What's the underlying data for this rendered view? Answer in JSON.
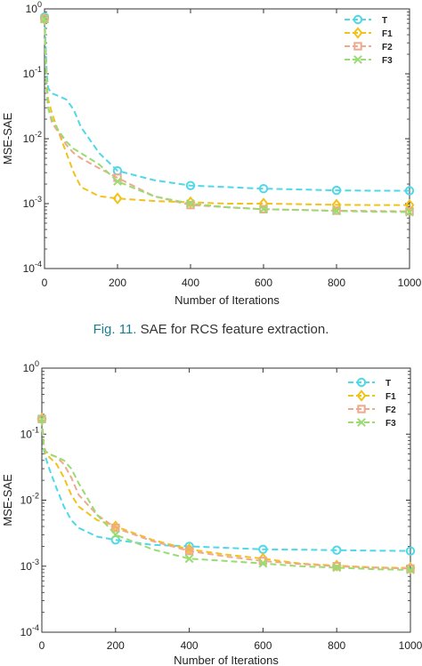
{
  "caption": {
    "figure_label": "Fig. 11.",
    "text": "SAE for RCS feature extraction."
  },
  "styles": {
    "T": {
      "color": "#4fd8e8",
      "marker": "circle"
    },
    "F1": {
      "color": "#f2c21c",
      "marker": "diamond"
    },
    "F2": {
      "color": "#f1a98e",
      "marker": "square"
    },
    "F3": {
      "color": "#98dc72",
      "marker": "cross"
    }
  },
  "chart_data": [
    {
      "type": "line",
      "title": "",
      "xlabel": "Number of Iterations",
      "ylabel": "MSE-SAE",
      "xlim": [
        0,
        1000
      ],
      "ylim": [
        0.0001,
        1
      ],
      "yscale": "log",
      "xticks": [
        "0",
        "200",
        "400",
        "600",
        "800",
        "1000"
      ],
      "yticks": [
        {
          "base": "10",
          "exp": "0"
        },
        {
          "base": "10",
          "exp": "-1"
        },
        {
          "base": "10",
          "exp": "-2"
        },
        {
          "base": "10",
          "exp": "-3"
        },
        {
          "base": "10",
          "exp": "-4"
        }
      ],
      "legend_position": "top-right",
      "grid": false,
      "series": [
        {
          "name": "T",
          "marker_x": [
            0,
            200,
            400,
            600,
            800,
            1000
          ],
          "x": [
            0,
            3,
            6,
            10,
            20,
            40,
            60,
            80,
            100,
            150,
            200,
            300,
            400,
            500,
            600,
            700,
            800,
            900,
            1000
          ],
          "y": [
            0.75,
            0.3,
            0.1,
            0.06,
            0.05,
            0.045,
            0.04,
            0.028,
            0.015,
            0.006,
            0.0032,
            0.0023,
            0.0019,
            0.0018,
            0.0017,
            0.00165,
            0.0016,
            0.00158,
            0.00158
          ]
        },
        {
          "name": "F1",
          "marker_x": [
            0,
            200,
            400,
            600,
            800,
            1000
          ],
          "x": [
            0,
            3,
            6,
            10,
            20,
            40,
            60,
            80,
            100,
            150,
            200,
            300,
            400,
            500,
            600,
            700,
            800,
            900,
            1000
          ],
          "y": [
            0.7,
            0.2,
            0.07,
            0.04,
            0.025,
            0.012,
            0.006,
            0.003,
            0.0018,
            0.0013,
            0.0012,
            0.0011,
            0.00105,
            0.001,
            0.001,
            0.00098,
            0.00096,
            0.00095,
            0.00095
          ]
        },
        {
          "name": "F2",
          "marker_x": [
            0,
            200,
            400,
            600,
            800,
            1000
          ],
          "x": [
            0,
            3,
            6,
            10,
            20,
            40,
            60,
            80,
            100,
            150,
            200,
            300,
            400,
            500,
            600,
            700,
            800,
            900,
            1000
          ],
          "y": [
            0.7,
            0.2,
            0.06,
            0.03,
            0.018,
            0.012,
            0.008,
            0.006,
            0.005,
            0.0035,
            0.0025,
            0.0013,
            0.00095,
            0.00088,
            0.00082,
            0.0008,
            0.00078,
            0.00077,
            0.00076
          ]
        },
        {
          "name": "F3",
          "marker_x": [
            0,
            200,
            400,
            600,
            800,
            1000
          ],
          "x": [
            0,
            3,
            6,
            10,
            20,
            40,
            60,
            80,
            100,
            150,
            200,
            300,
            400,
            500,
            600,
            700,
            800,
            900,
            1000
          ],
          "y": [
            0.7,
            0.15,
            0.05,
            0.03,
            0.02,
            0.013,
            0.009,
            0.007,
            0.006,
            0.004,
            0.0022,
            0.0013,
            0.001,
            0.00088,
            0.00082,
            0.0008,
            0.00077,
            0.00075,
            0.00074
          ]
        }
      ]
    },
    {
      "type": "line",
      "title": "",
      "xlabel": "Number of Iterations",
      "ylabel": "MSE-SAE",
      "xlim": [
        0,
        1000
      ],
      "ylim": [
        0.0001,
        1
      ],
      "yscale": "log",
      "xticks": [
        "0",
        "200",
        "400",
        "600",
        "800",
        "1000"
      ],
      "yticks": [
        {
          "base": "10",
          "exp": "0"
        },
        {
          "base": "10",
          "exp": "-1"
        },
        {
          "base": "10",
          "exp": "-2"
        },
        {
          "base": "10",
          "exp": "-3"
        },
        {
          "base": "10",
          "exp": "-4"
        }
      ],
      "legend_position": "top-right",
      "grid": false,
      "series": [
        {
          "name": "T",
          "marker_x": [
            0,
            200,
            400,
            600,
            800,
            1000
          ],
          "x": [
            0,
            5,
            10,
            20,
            40,
            60,
            80,
            100,
            150,
            200,
            300,
            400,
            500,
            600,
            700,
            800,
            900,
            1000
          ],
          "y": [
            0.17,
            0.06,
            0.045,
            0.03,
            0.015,
            0.008,
            0.005,
            0.0038,
            0.0028,
            0.0025,
            0.0021,
            0.002,
            0.0019,
            0.0018,
            0.00178,
            0.00175,
            0.00172,
            0.0017
          ]
        },
        {
          "name": "F1",
          "marker_x": [
            0,
            200,
            400,
            600,
            800,
            1000
          ],
          "x": [
            0,
            5,
            10,
            20,
            40,
            60,
            80,
            100,
            150,
            200,
            300,
            400,
            500,
            600,
            700,
            800,
            900,
            1000
          ],
          "y": [
            0.17,
            0.07,
            0.05,
            0.045,
            0.035,
            0.022,
            0.012,
            0.008,
            0.005,
            0.004,
            0.0025,
            0.0018,
            0.0015,
            0.0013,
            0.0011,
            0.00102,
            0.00096,
            0.00094
          ]
        },
        {
          "name": "F2",
          "marker_x": [
            0,
            200,
            400,
            600,
            800,
            1000
          ],
          "x": [
            0,
            5,
            10,
            20,
            40,
            60,
            80,
            100,
            150,
            200,
            300,
            400,
            500,
            600,
            700,
            800,
            900,
            1000
          ],
          "y": [
            0.17,
            0.07,
            0.055,
            0.05,
            0.045,
            0.035,
            0.022,
            0.012,
            0.006,
            0.0038,
            0.0024,
            0.0017,
            0.0014,
            0.0012,
            0.00108,
            0.001,
            0.00095,
            0.00092
          ]
        },
        {
          "name": "F3",
          "marker_x": [
            0,
            200,
            400,
            600,
            800,
            1000
          ],
          "x": [
            0,
            5,
            10,
            20,
            40,
            60,
            80,
            100,
            150,
            200,
            300,
            400,
            500,
            600,
            700,
            800,
            900,
            1000
          ],
          "y": [
            0.17,
            0.06,
            0.055,
            0.05,
            0.045,
            0.04,
            0.03,
            0.018,
            0.006,
            0.003,
            0.0018,
            0.0013,
            0.0012,
            0.0011,
            0.001,
            0.00095,
            0.0009,
            0.00088
          ]
        }
      ]
    }
  ]
}
